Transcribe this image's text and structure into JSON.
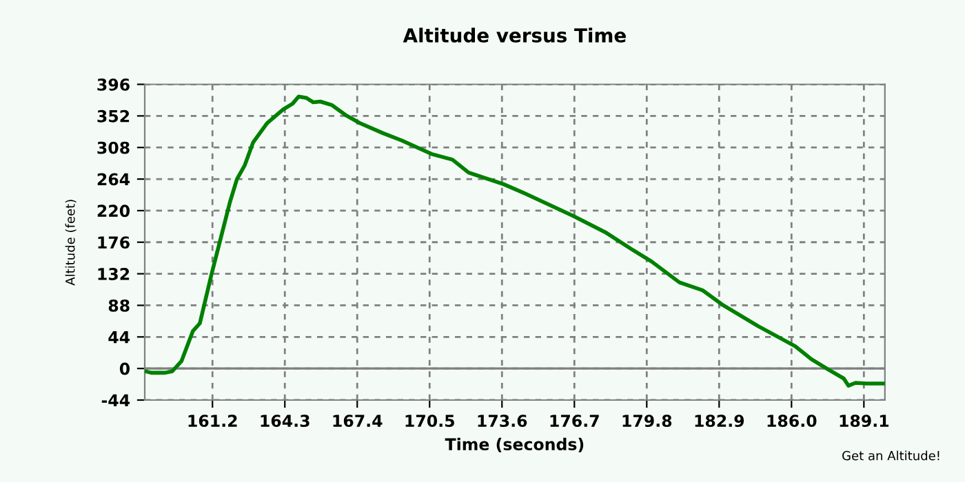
{
  "chart_data": {
    "type": "line",
    "title": "Altitude versus Time",
    "xlabel": "Time (seconds)",
    "ylabel": "Altitude (feet)",
    "x": [
      158.34,
      158.58,
      159.17,
      159.47,
      159.87,
      160.36,
      160.66,
      161.15,
      161.55,
      161.95,
      162.25,
      162.58,
      162.94,
      163.54,
      164.23,
      164.63,
      164.89,
      165.23,
      165.52,
      165.82,
      166.32,
      166.91,
      167.51,
      168.5,
      169.29,
      170.58,
      171.48,
      172.17,
      173.66,
      174.65,
      176.63,
      178.02,
      179.21,
      180.01,
      181.2,
      182.19,
      183.08,
      184.57,
      186.16,
      186.85,
      187.55,
      188.24,
      188.44,
      188.74,
      189.23,
      189.93
    ],
    "series": [
      {
        "color": "#008000",
        "values": [
          -4,
          -6,
          -6,
          -4,
          10,
          52,
          63,
          130,
          181,
          232,
          264,
          283,
          315,
          342,
          361,
          369,
          379,
          377,
          371,
          372,
          367,
          353,
          342,
          328,
          318,
          299,
          291,
          273,
          257,
          243,
          213,
          190,
          165,
          149,
          120,
          109,
          88,
          59,
          31,
          13,
          -1,
          -14,
          -24,
          -20,
          -21,
          -21
        ]
      }
    ],
    "xlim": [
      158.3,
      190.0
    ],
    "xticks": [
      161.2,
      164.3,
      167.4,
      170.5,
      173.6,
      176.7,
      179.8,
      182.9,
      {
        "value": 186,
        "label": "186.0"
      },
      189.1
    ],
    "ylim": [
      -44,
      396
    ],
    "yticks": [
      -44,
      0,
      44,
      88,
      132,
      176,
      220,
      264,
      308,
      352,
      396
    ],
    "grid": true,
    "line_style": "solid",
    "marker": "none",
    "ref_lines": [
      {
        "axis": "y",
        "value": 0,
        "color": "#808080",
        "line_style": "solid"
      }
    ],
    "annotations": [
      "Get an Altitude!"
    ]
  }
}
